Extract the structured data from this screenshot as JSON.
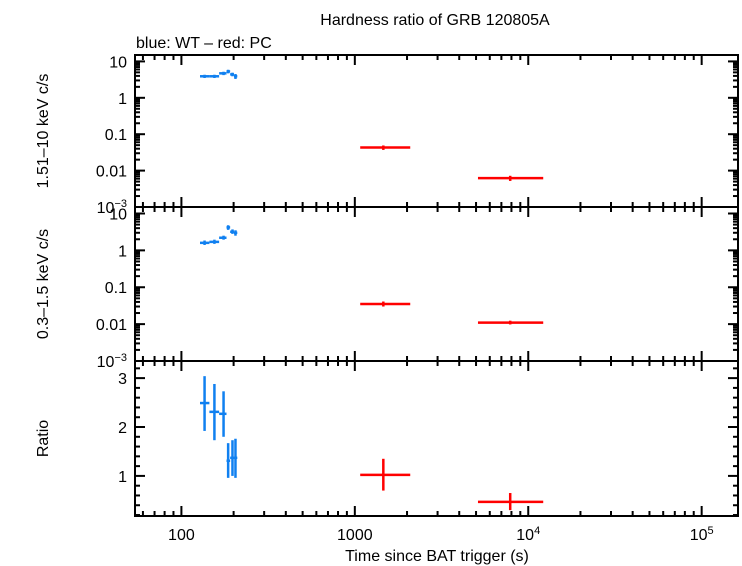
{
  "chart_data": {
    "type": "scatter",
    "title": "Hardness ratio of GRB 120805A",
    "subtitle": "blue: WT – red: PC",
    "xlabel": "Time since BAT trigger (s)",
    "xscale": "log",
    "xlim": [
      54,
      162000
    ],
    "xticks": [
      {
        "value": 100,
        "label": "100"
      },
      {
        "value": 1000,
        "label": "1000"
      },
      {
        "value": 10000,
        "label": "10",
        "sup": "4"
      },
      {
        "value": 100000,
        "label": "10",
        "sup": "5"
      }
    ],
    "colors": {
      "WT": "#1080f0",
      "PC": "#ff0000"
    },
    "panels": [
      {
        "ylabel": "1.51–10 keV c/s",
        "yscale": "log",
        "ylim": [
          0.001,
          15
        ],
        "yticks": [
          {
            "value": 10,
            "label": "10"
          },
          {
            "value": 1,
            "label": "1"
          },
          {
            "value": 0.1,
            "label": "0.1"
          },
          {
            "value": 0.01,
            "label": "0.01"
          },
          {
            "value": 0.001,
            "label": "10",
            "sup": "−3"
          }
        ],
        "series": [
          {
            "mode": "WT",
            "points": [
              {
                "x": 136,
                "xlo": 128,
                "xhi": 145,
                "y": 3.9,
                "ylo": 3.5,
                "yhi": 4.3
              },
              {
                "x": 155,
                "xlo": 145,
                "xhi": 165,
                "y": 3.9,
                "ylo": 3.5,
                "yhi": 4.3
              },
              {
                "x": 175,
                "xlo": 165,
                "xhi": 182,
                "y": 4.7,
                "ylo": 4.2,
                "yhi": 5.2
              },
              {
                "x": 186,
                "xlo": 182,
                "xhi": 191,
                "y": 5.3,
                "ylo": 4.7,
                "yhi": 5.9
              },
              {
                "x": 197,
                "xlo": 191,
                "xhi": 201,
                "y": 4.4,
                "ylo": 3.9,
                "yhi": 4.9
              },
              {
                "x": 205,
                "xlo": 201,
                "xhi": 210,
                "y": 3.9,
                "ylo": 3.3,
                "yhi": 4.5
              }
            ]
          },
          {
            "mode": "PC",
            "points": [
              {
                "x": 1460,
                "xlo": 1074,
                "xhi": 2087,
                "y": 0.043,
                "ylo": 0.037,
                "yhi": 0.049
              },
              {
                "x": 7870,
                "xlo": 5130,
                "xhi": 12200,
                "y": 0.0062,
                "ylo": 0.0052,
                "yhi": 0.0072
              }
            ]
          }
        ]
      },
      {
        "ylabel": "0.3–1.5 keV c/s",
        "yscale": "log",
        "ylim": [
          0.001,
          15
        ],
        "yticks": [
          {
            "value": 10,
            "label": "10"
          },
          {
            "value": 1,
            "label": "1"
          },
          {
            "value": 0.1,
            "label": "0.1"
          },
          {
            "value": 0.01,
            "label": "0.01"
          },
          {
            "value": 0.001,
            "label": "10",
            "sup": "−3"
          }
        ],
        "series": [
          {
            "mode": "WT",
            "points": [
              {
                "x": 136,
                "xlo": 128,
                "xhi": 145,
                "y": 1.6,
                "ylo": 1.4,
                "yhi": 1.85
              },
              {
                "x": 155,
                "xlo": 145,
                "xhi": 165,
                "y": 1.7,
                "ylo": 1.5,
                "yhi": 1.95
              },
              {
                "x": 175,
                "xlo": 165,
                "xhi": 182,
                "y": 2.2,
                "ylo": 1.95,
                "yhi": 2.5
              },
              {
                "x": 186,
                "xlo": 182,
                "xhi": 191,
                "y": 4.2,
                "ylo": 3.6,
                "yhi": 4.8
              },
              {
                "x": 197,
                "xlo": 191,
                "xhi": 201,
                "y": 3.2,
                "ylo": 2.8,
                "yhi": 3.7
              },
              {
                "x": 205,
                "xlo": 201,
                "xhi": 210,
                "y": 3.0,
                "ylo": 2.5,
                "yhi": 3.5
              }
            ]
          },
          {
            "mode": "PC",
            "points": [
              {
                "x": 1460,
                "xlo": 1074,
                "xhi": 2087,
                "y": 0.035,
                "ylo": 0.03,
                "yhi": 0.041
              },
              {
                "x": 7870,
                "xlo": 5130,
                "xhi": 12200,
                "y": 0.011,
                "ylo": 0.0098,
                "yhi": 0.0124
              }
            ]
          }
        ]
      },
      {
        "ylabel": "Ratio",
        "yscale": "linear",
        "ylim": [
          0.18,
          3.35
        ],
        "yticks": [
          {
            "value": 3,
            "label": "3"
          },
          {
            "value": 2,
            "label": "2"
          },
          {
            "value": 1,
            "label": "1"
          }
        ],
        "series": [
          {
            "mode": "WT",
            "points": [
              {
                "x": 136,
                "xlo": 128,
                "xhi": 145,
                "y": 2.49,
                "ylo": 1.92,
                "yhi": 3.04
              },
              {
                "x": 155,
                "xlo": 145,
                "xhi": 165,
                "y": 2.31,
                "ylo": 1.73,
                "yhi": 2.88
              },
              {
                "x": 175,
                "xlo": 165,
                "xhi": 182,
                "y": 2.27,
                "ylo": 1.8,
                "yhi": 2.73
              },
              {
                "x": 186,
                "xlo": 182,
                "xhi": 191,
                "y": 1.31,
                "ylo": 0.96,
                "yhi": 1.67
              },
              {
                "x": 197,
                "xlo": 191,
                "xhi": 201,
                "y": 1.37,
                "ylo": 1.0,
                "yhi": 1.73
              },
              {
                "x": 205,
                "xlo": 201,
                "xhi": 210,
                "y": 1.37,
                "ylo": 0.96,
                "yhi": 1.76
              }
            ]
          },
          {
            "mode": "PC",
            "points": [
              {
                "x": 1460,
                "xlo": 1074,
                "xhi": 2087,
                "y": 1.02,
                "ylo": 0.7,
                "yhi": 1.35
              },
              {
                "x": 7870,
                "xlo": 5130,
                "xhi": 12200,
                "y": 0.47,
                "ylo": 0.3,
                "yhi": 0.65
              }
            ]
          }
        ]
      }
    ]
  }
}
